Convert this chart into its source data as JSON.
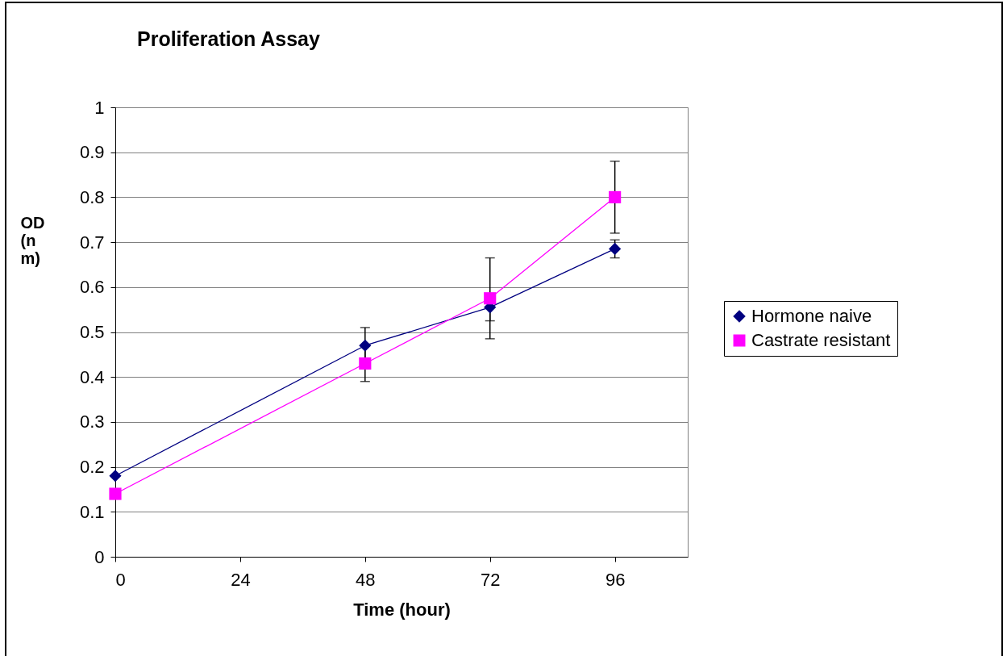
{
  "chart_data": {
    "type": "line",
    "title": "Proliferation Assay",
    "xlabel": "Time (hour)",
    "ylabel": "OD (nm)",
    "x": [
      0,
      48,
      72,
      96
    ],
    "series": [
      {
        "name": "Hormone naive",
        "color": "#000080",
        "marker": "diamond",
        "values": [
          0.18,
          0.47,
          0.555,
          0.685
        ],
        "errors": [
          null,
          0.04,
          0.03,
          0.02
        ]
      },
      {
        "name": "Castrate resistant",
        "color": "#ff00ff",
        "marker": "square",
        "values": [
          0.14,
          0.43,
          0.575,
          0.8
        ],
        "errors": [
          null,
          0.04,
          0.09,
          0.08
        ]
      }
    ],
    "xlim": [
      0,
      110
    ],
    "xticks": [
      0,
      24,
      48,
      72,
      96
    ],
    "ylim": [
      0,
      1
    ],
    "yticks": [
      0,
      0.1,
      0.2,
      0.3,
      0.4,
      0.5,
      0.6,
      0.7,
      0.8,
      0.9,
      1
    ],
    "grid": "y",
    "legend": "right",
    "line_style": "solid"
  }
}
